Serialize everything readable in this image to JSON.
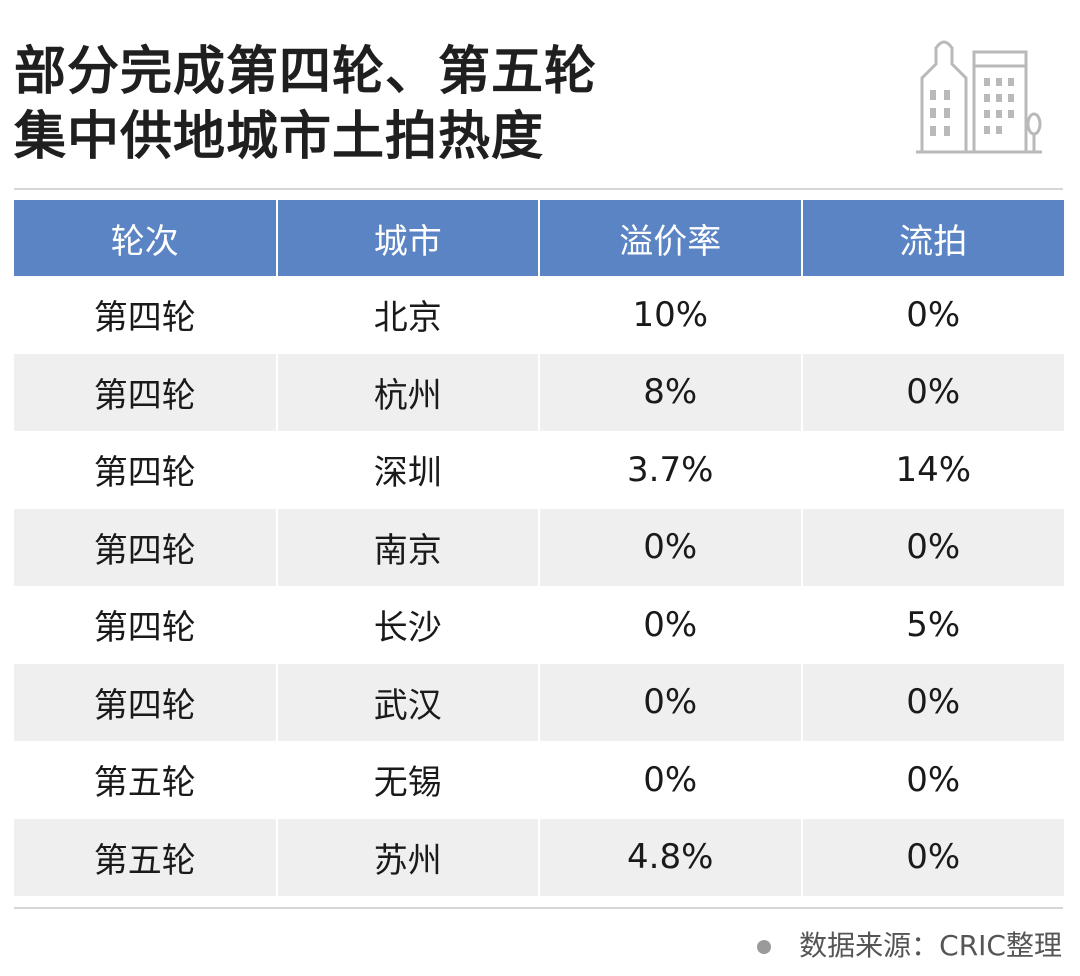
{
  "title": {
    "line1": "部分完成第四轮、第五轮",
    "line2": "集中供地城市土拍热度"
  },
  "table": {
    "headers": [
      "轮次",
      "城市",
      "溢价率",
      "流拍"
    ],
    "rows": [
      [
        "第四轮",
        "北京",
        "10%",
        "0%"
      ],
      [
        "第四轮",
        "杭州",
        "8%",
        "0%"
      ],
      [
        "第四轮",
        "深圳",
        "3.7%",
        "14%"
      ],
      [
        "第四轮",
        "南京",
        "0%",
        "0%"
      ],
      [
        "第四轮",
        "长沙",
        "0%",
        "5%"
      ],
      [
        "第四轮",
        "武汉",
        "0%",
        "0%"
      ],
      [
        "第五轮",
        "无锡",
        "0%",
        "0%"
      ],
      [
        "第五轮",
        "苏州",
        "4.8%",
        "0%"
      ]
    ]
  },
  "source": "数据来源：CRIC整理",
  "colors": {
    "header_bg": "#5b84c4",
    "stripe_bg": "#efefef"
  },
  "chart_data": {
    "type": "table",
    "columns": [
      "轮次",
      "城市",
      "溢价率",
      "流拍"
    ],
    "rows": [
      {
        "轮次": "第四轮",
        "城市": "北京",
        "溢价率": 10,
        "流拍": 0
      },
      {
        "轮次": "第四轮",
        "城市": "杭州",
        "溢价率": 8,
        "流拍": 0
      },
      {
        "轮次": "第四轮",
        "城市": "深圳",
        "溢价率": 3.7,
        "流拍": 14
      },
      {
        "轮次": "第四轮",
        "城市": "南京",
        "溢价率": 0,
        "流拍": 0
      },
      {
        "轮次": "第四轮",
        "城市": "长沙",
        "溢价率": 0,
        "流拍": 5
      },
      {
        "轮次": "第四轮",
        "城市": "武汉",
        "溢价率": 0,
        "流拍": 0
      },
      {
        "轮次": "第五轮",
        "城市": "无锡",
        "溢价率": 0,
        "流拍": 0
      },
      {
        "轮次": "第五轮",
        "城市": "苏州",
        "溢价率": 4.8,
        "流拍": 0
      }
    ],
    "unit": "%"
  }
}
